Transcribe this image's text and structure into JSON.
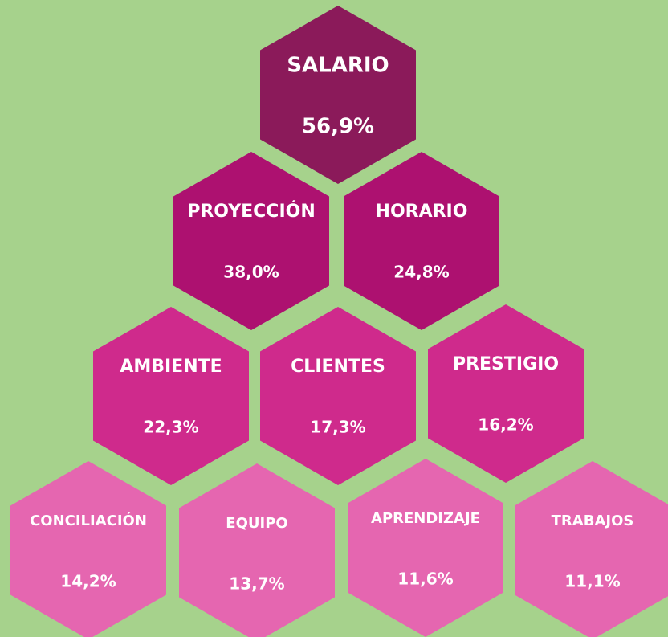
{
  "nodes": [
    {
      "label": "SALARIO",
      "value": "56,9%"
    },
    {
      "label": "PROYECCIÓN",
      "value": "38,0%"
    },
    {
      "label": "HORARIO",
      "value": "24,8%"
    },
    {
      "label": "AMBIENTE",
      "value": "22,3%"
    },
    {
      "label": "CLIENTES",
      "value": "17,3%"
    },
    {
      "label": "PRESTIGIO",
      "value": "16,2%"
    },
    {
      "label": "CONCILIACIÓN",
      "value": "14,2%"
    },
    {
      "label": "EQUIPO",
      "value": "13,7%"
    },
    {
      "label": "APRENDIZAJE",
      "value": "11,6%"
    },
    {
      "label": "TRABAJOS",
      "value": "11,1%"
    }
  ]
}
